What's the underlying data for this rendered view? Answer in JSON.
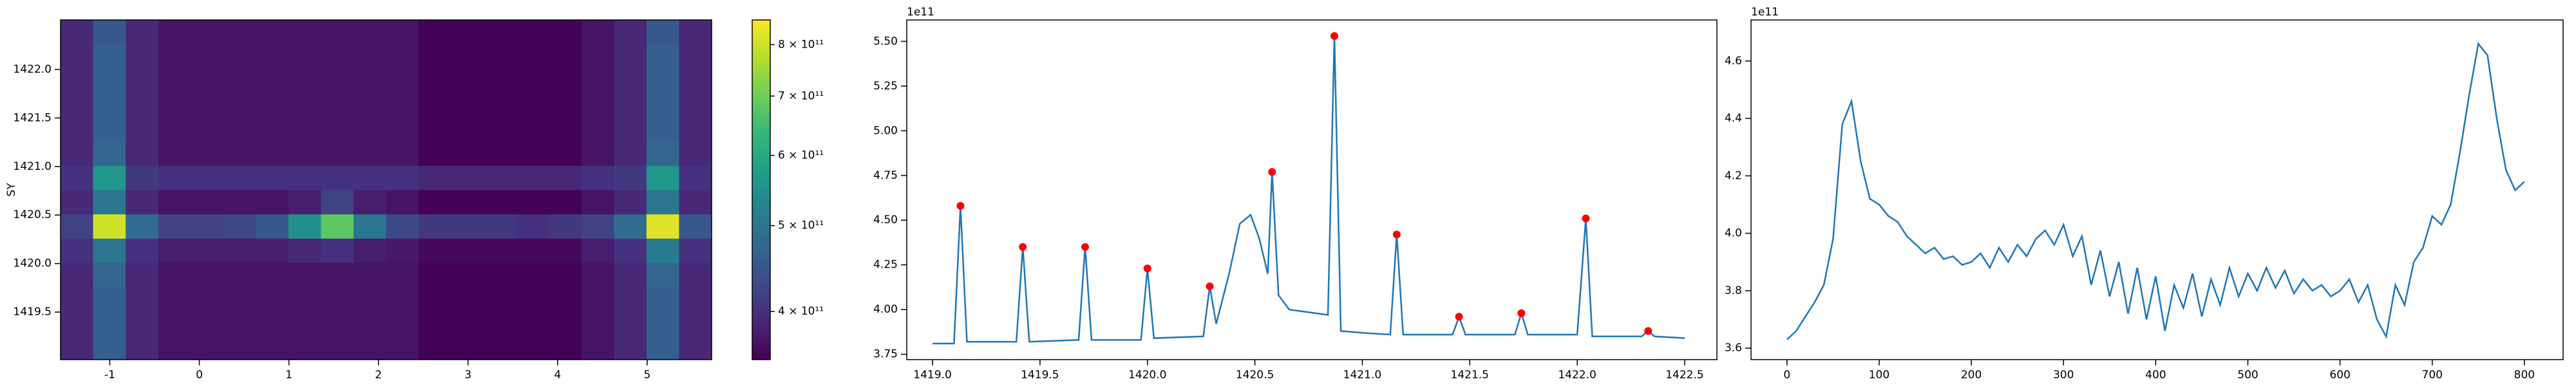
{
  "chart_data": [
    {
      "type": "heatmap",
      "ylabel": "SY",
      "color_scale": "log",
      "colormap": "viridis",
      "xedges": [
        -1.55,
        -1.1865,
        -0.823,
        -0.4595,
        -0.096,
        0.2675,
        0.631,
        0.9945,
        1.358,
        1.7215,
        2.085,
        2.4485,
        2.812,
        3.1755,
        3.539,
        3.9025,
        4.266,
        4.6295,
        4.993,
        5.3565,
        5.72
      ],
      "yedges": [
        1419.01,
        1419.26,
        1419.51,
        1419.76,
        1420.01,
        1420.26,
        1420.51,
        1420.76,
        1421.01,
        1421.26,
        1421.51,
        1421.76,
        1422.01,
        1422.26,
        1422.51
      ],
      "xlim": [
        -1.55,
        5.72
      ],
      "ylim": [
        1419.01,
        1422.51
      ],
      "xticks": [
        -1,
        0,
        1,
        2,
        3,
        4,
        5
      ],
      "yticks": [
        1419.5,
        {
          "value": 1420,
          "label": "1420.0"
        },
        1420.5,
        {
          "value": 1421,
          "label": "1421.0"
        },
        1421.5,
        {
          "value": 1422,
          "label": "1422.0"
        }
      ],
      "z": [
        [
          390000000000.0,
          460000000000.0,
          390000000000.0,
          370000000000.0,
          370000000000.0,
          370000000000.0,
          370000000000.0,
          370000000000.0,
          370000000000.0,
          370000000000.0,
          370000000000.0,
          355000000000.0,
          355000000000.0,
          355000000000.0,
          355000000000.0,
          355000000000.0,
          370000000000.0,
          390000000000.0,
          460000000000.0,
          390000000000.0
        ],
        [
          390000000000.0,
          460000000000.0,
          390000000000.0,
          370000000000.0,
          370000000000.0,
          370000000000.0,
          370000000000.0,
          370000000000.0,
          370000000000.0,
          370000000000.0,
          370000000000.0,
          355000000000.0,
          355000000000.0,
          355000000000.0,
          355000000000.0,
          355000000000.0,
          370000000000.0,
          390000000000.0,
          460000000000.0,
          390000000000.0
        ],
        [
          390000000000.0,
          460000000000.0,
          390000000000.0,
          370000000000.0,
          370000000000.0,
          370000000000.0,
          370000000000.0,
          370000000000.0,
          370000000000.0,
          370000000000.0,
          370000000000.0,
          355000000000.0,
          355000000000.0,
          355000000000.0,
          355000000000.0,
          355000000000.0,
          370000000000.0,
          390000000000.0,
          460000000000.0,
          390000000000.0
        ],
        [
          390000000000.0,
          470000000000.0,
          390000000000.0,
          370000000000.0,
          370000000000.0,
          370000000000.0,
          370000000000.0,
          370000000000.0,
          370000000000.0,
          370000000000.0,
          370000000000.0,
          355000000000.0,
          355000000000.0,
          355000000000.0,
          355000000000.0,
          355000000000.0,
          370000000000.0,
          390000000000.0,
          470000000000.0,
          390000000000.0
        ],
        [
          400000000000.0,
          500000000000.0,
          400000000000.0,
          380000000000.0,
          380000000000.0,
          380000000000.0,
          380000000000.0,
          390000000000.0,
          400000000000.0,
          380000000000.0,
          375000000000.0,
          360000000000.0,
          360000000000.0,
          360000000000.0,
          360000000000.0,
          360000000000.0,
          380000000000.0,
          400000000000.0,
          510000000000.0,
          400000000000.0
        ],
        [
          420000000000.0,
          800000000000.0,
          480000000000.0,
          420000000000.0,
          420000000000.0,
          430000000000.0,
          450000000000.0,
          550000000000.0,
          680000000000.0,
          500000000000.0,
          430000000000.0,
          410000000000.0,
          410000000000.0,
          410000000000.0,
          400000000000.0,
          410000000000.0,
          420000000000.0,
          480000000000.0,
          820000000000.0,
          450000000000.0
        ],
        [
          390000000000.0,
          500000000000.0,
          390000000000.0,
          370000000000.0,
          370000000000.0,
          370000000000.0,
          370000000000.0,
          380000000000.0,
          420000000000.0,
          380000000000.0,
          370000000000.0,
          355000000000.0,
          355000000000.0,
          355000000000.0,
          355000000000.0,
          355000000000.0,
          370000000000.0,
          390000000000.0,
          500000000000.0,
          390000000000.0
        ],
        [
          400000000000.0,
          560000000000.0,
          410000000000.0,
          400000000000.0,
          400000000000.0,
          400000000000.0,
          400000000000.0,
          400000000000.0,
          400000000000.0,
          400000000000.0,
          400000000000.0,
          390000000000.0,
          390000000000.0,
          390000000000.0,
          390000000000.0,
          390000000000.0,
          400000000000.0,
          410000000000.0,
          560000000000.0,
          400000000000.0
        ],
        [
          390000000000.0,
          470000000000.0,
          390000000000.0,
          370000000000.0,
          370000000000.0,
          370000000000.0,
          370000000000.0,
          370000000000.0,
          370000000000.0,
          370000000000.0,
          370000000000.0,
          355000000000.0,
          355000000000.0,
          355000000000.0,
          355000000000.0,
          355000000000.0,
          370000000000.0,
          390000000000.0,
          470000000000.0,
          390000000000.0
        ],
        [
          390000000000.0,
          460000000000.0,
          390000000000.0,
          370000000000.0,
          370000000000.0,
          370000000000.0,
          370000000000.0,
          370000000000.0,
          370000000000.0,
          370000000000.0,
          370000000000.0,
          355000000000.0,
          355000000000.0,
          355000000000.0,
          355000000000.0,
          355000000000.0,
          370000000000.0,
          390000000000.0,
          460000000000.0,
          390000000000.0
        ],
        [
          390000000000.0,
          460000000000.0,
          390000000000.0,
          370000000000.0,
          370000000000.0,
          370000000000.0,
          370000000000.0,
          370000000000.0,
          370000000000.0,
          370000000000.0,
          370000000000.0,
          355000000000.0,
          355000000000.0,
          355000000000.0,
          355000000000.0,
          355000000000.0,
          370000000000.0,
          390000000000.0,
          460000000000.0,
          390000000000.0
        ],
        [
          390000000000.0,
          460000000000.0,
          390000000000.0,
          370000000000.0,
          370000000000.0,
          370000000000.0,
          370000000000.0,
          370000000000.0,
          370000000000.0,
          370000000000.0,
          370000000000.0,
          355000000000.0,
          355000000000.0,
          355000000000.0,
          355000000000.0,
          355000000000.0,
          370000000000.0,
          390000000000.0,
          460000000000.0,
          390000000000.0
        ],
        [
          390000000000.0,
          460000000000.0,
          390000000000.0,
          370000000000.0,
          370000000000.0,
          370000000000.0,
          370000000000.0,
          370000000000.0,
          370000000000.0,
          370000000000.0,
          370000000000.0,
          355000000000.0,
          355000000000.0,
          355000000000.0,
          355000000000.0,
          355000000000.0,
          370000000000.0,
          390000000000.0,
          460000000000.0,
          390000000000.0
        ],
        [
          390000000000.0,
          450000000000.0,
          390000000000.0,
          370000000000.0,
          370000000000.0,
          370000000000.0,
          370000000000.0,
          370000000000.0,
          370000000000.0,
          370000000000.0,
          370000000000.0,
          355000000000.0,
          355000000000.0,
          355000000000.0,
          355000000000.0,
          355000000000.0,
          370000000000.0,
          390000000000.0,
          450000000000.0,
          390000000000.0
        ]
      ],
      "colorbar": {
        "lim": [
          353000000000.0,
          853000000000.0
        ],
        "ticks": [
          {
            "value": 400000000000.0,
            "label": "4 × 10¹¹"
          },
          {
            "value": 500000000000.0,
            "label": "5 × 10¹¹"
          },
          {
            "value": 600000000000.0,
            "label": "6 × 10¹¹"
          },
          {
            "value": 700000000000.0,
            "label": "7 × 10¹¹"
          },
          {
            "value": 800000000000.0,
            "label": "8 × 10¹¹"
          }
        ]
      }
    },
    {
      "type": "line",
      "offset_label": "1e11",
      "color": "#1f77b4",
      "xlim": [
        1418.88,
        1422.65
      ],
      "ylim": [
        3.72,
        5.62
      ],
      "xticks": [
        {
          "value": 1419,
          "label": "1419.0"
        },
        1419.5,
        {
          "value": 1420,
          "label": "1420.0"
        },
        1420.5,
        {
          "value": 1421,
          "label": "1421.0"
        },
        1421.5,
        {
          "value": 1422,
          "label": "1422.0"
        },
        1422.5
      ],
      "yticks": [
        3.75,
        {
          "value": 4,
          "label": "4.00"
        },
        4.25,
        {
          "value": 4.5,
          "label": "4.50"
        },
        4.75,
        {
          "value": 5,
          "label": "5.00"
        },
        5.25,
        {
          "value": 5.5,
          "label": "5.50"
        }
      ],
      "x": [
        1419.0,
        1419.1,
        1419.13,
        1419.16,
        1419.39,
        1419.42,
        1419.45,
        1419.68,
        1419.71,
        1419.74,
        1419.97,
        1420.0,
        1420.03,
        1420.26,
        1420.29,
        1420.32,
        1420.38,
        1420.43,
        1420.48,
        1420.52,
        1420.56,
        1420.58,
        1420.61,
        1420.66,
        1420.72,
        1420.78,
        1420.84,
        1420.87,
        1420.9,
        1421.0,
        1421.13,
        1421.16,
        1421.19,
        1421.42,
        1421.45,
        1421.48,
        1421.71,
        1421.74,
        1421.77,
        1422.0,
        1422.04,
        1422.07,
        1422.3,
        1422.33,
        1422.36,
        1422.5
      ],
      "values": [
        3.81,
        3.81,
        4.58,
        3.82,
        3.82,
        4.35,
        3.82,
        3.83,
        4.35,
        3.83,
        3.83,
        4.23,
        3.84,
        3.85,
        4.13,
        3.92,
        4.2,
        4.48,
        4.53,
        4.4,
        4.2,
        4.77,
        4.08,
        4.0,
        3.99,
        3.98,
        3.97,
        5.53,
        3.88,
        3.87,
        3.86,
        4.42,
        3.86,
        3.86,
        3.96,
        3.86,
        3.86,
        3.98,
        3.86,
        3.86,
        4.51,
        3.85,
        3.85,
        3.88,
        3.85,
        3.84
      ],
      "markers": {
        "color": "red",
        "x": [
          1419.13,
          1419.42,
          1419.71,
          1420.0,
          1420.29,
          1420.58,
          1420.87,
          1421.16,
          1421.45,
          1421.74,
          1422.04,
          1422.33
        ],
        "values": [
          4.58,
          4.35,
          4.35,
          4.23,
          4.13,
          4.77,
          5.53,
          4.42,
          3.96,
          3.98,
          4.51,
          3.88
        ]
      }
    },
    {
      "type": "line",
      "offset_label": "1e11",
      "color": "#1f77b4",
      "xlim": [
        -39,
        842
      ],
      "ylim": [
        3.56,
        4.743
      ],
      "xticks": [
        0,
        100,
        200,
        300,
        400,
        500,
        600,
        700,
        800
      ],
      "yticks": [
        3.6,
        3.8,
        {
          "value": 4,
          "label": "4.0"
        },
        4.2,
        4.4,
        4.6
      ],
      "x": [
        0,
        10,
        20,
        30,
        40,
        50,
        60,
        70,
        80,
        90,
        100,
        110,
        120,
        130,
        140,
        150,
        160,
        170,
        180,
        190,
        200,
        210,
        220,
        230,
        240,
        250,
        260,
        270,
        280,
        290,
        300,
        310,
        320,
        330,
        340,
        350,
        360,
        370,
        380,
        390,
        400,
        410,
        420,
        430,
        440,
        450,
        460,
        470,
        480,
        490,
        500,
        510,
        520,
        530,
        540,
        550,
        560,
        570,
        580,
        590,
        600,
        610,
        620,
        630,
        640,
        650,
        660,
        670,
        680,
        690,
        700,
        710,
        720,
        730,
        740,
        750,
        760,
        770,
        780,
        790,
        800
      ],
      "values": [
        3.63,
        3.66,
        3.71,
        3.76,
        3.82,
        3.98,
        4.38,
        4.46,
        4.25,
        4.12,
        4.1,
        4.06,
        4.04,
        3.99,
        3.96,
        3.93,
        3.95,
        3.91,
        3.92,
        3.89,
        3.9,
        3.93,
        3.88,
        3.95,
        3.9,
        3.96,
        3.92,
        3.98,
        4.01,
        3.96,
        4.03,
        3.92,
        3.99,
        3.82,
        3.94,
        3.78,
        3.9,
        3.72,
        3.88,
        3.7,
        3.85,
        3.66,
        3.82,
        3.74,
        3.86,
        3.71,
        3.84,
        3.75,
        3.88,
        3.78,
        3.86,
        3.8,
        3.88,
        3.81,
        3.87,
        3.79,
        3.84,
        3.8,
        3.82,
        3.78,
        3.8,
        3.84,
        3.76,
        3.82,
        3.7,
        3.64,
        3.82,
        3.75,
        3.9,
        3.95,
        4.06,
        4.03,
        4.1,
        4.28,
        4.48,
        4.66,
        4.62,
        4.4,
        4.22,
        4.15,
        4.18
      ]
    }
  ]
}
